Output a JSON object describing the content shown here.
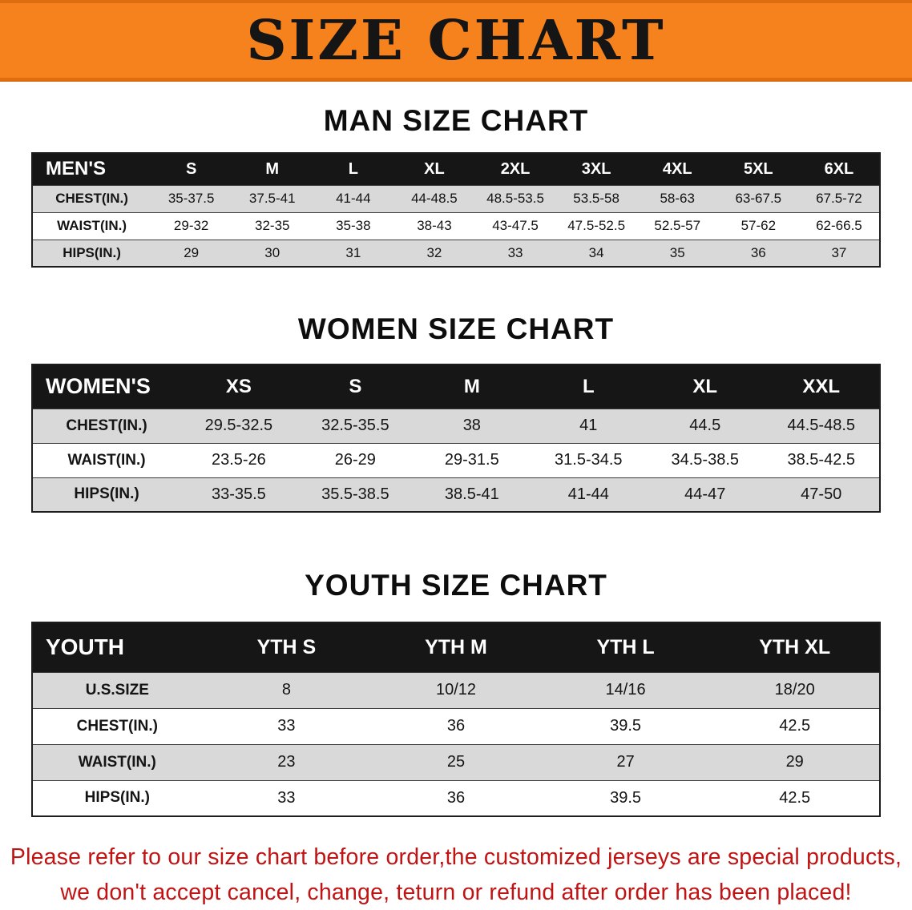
{
  "banner": {
    "title": "SIZE CHART",
    "background_color": "#f6821e",
    "text_color": "#151515"
  },
  "chart_data": [
    {
      "type": "table",
      "title": "MAN SIZE CHART",
      "header": [
        "MEN'S",
        "S",
        "M",
        "L",
        "XL",
        "2XL",
        "3XL",
        "4XL",
        "5XL",
        "6XL"
      ],
      "rows": [
        [
          "CHEST(IN.)",
          "35-37.5",
          "37.5-41",
          "41-44",
          "44-48.5",
          "48.5-53.5",
          "53.5-58",
          "58-63",
          "63-67.5",
          "67.5-72"
        ],
        [
          "WAIST(IN.)",
          "29-32",
          "32-35",
          "35-38",
          "38-43",
          "43-47.5",
          "47.5-52.5",
          "52.5-57",
          "57-62",
          "62-66.5"
        ],
        [
          "HIPS(IN.)",
          "29",
          "30",
          "31",
          "32",
          "33",
          "34",
          "35",
          "36",
          "37"
        ]
      ]
    },
    {
      "type": "table",
      "title": "WOMEN SIZE CHART",
      "header": [
        "WOMEN'S",
        "XS",
        "S",
        "M",
        "L",
        "XL",
        "XXL"
      ],
      "rows": [
        [
          "CHEST(IN.)",
          "29.5-32.5",
          "32.5-35.5",
          "38",
          "41",
          "44.5",
          "44.5-48.5"
        ],
        [
          "WAIST(IN.)",
          "23.5-26",
          "26-29",
          "29-31.5",
          "31.5-34.5",
          "34.5-38.5",
          "38.5-42.5"
        ],
        [
          "HIPS(IN.)",
          "33-35.5",
          "35.5-38.5",
          "38.5-41",
          "41-44",
          "44-47",
          "47-50"
        ]
      ]
    },
    {
      "type": "table",
      "title": "YOUTH SIZE CHART",
      "header": [
        "YOUTH",
        "YTH S",
        "YTH M",
        "YTH L",
        "YTH XL"
      ],
      "rows": [
        [
          "U.S.SIZE",
          "8",
          "10/12",
          "14/16",
          "18/20"
        ],
        [
          "CHEST(IN.)",
          "33",
          "36",
          "39.5",
          "42.5"
        ],
        [
          "WAIST(IN.)",
          "23",
          "25",
          "27",
          "29"
        ],
        [
          "HIPS(IN.)",
          "33",
          "36",
          "39.5",
          "42.5"
        ]
      ]
    }
  ],
  "footer": {
    "line1": "Please refer to our size chart before order,the customized jerseys are special products,",
    "line2": "we don't accept cancel, change, teturn or refund after order has been placed!",
    "text_color": "#c01414"
  }
}
